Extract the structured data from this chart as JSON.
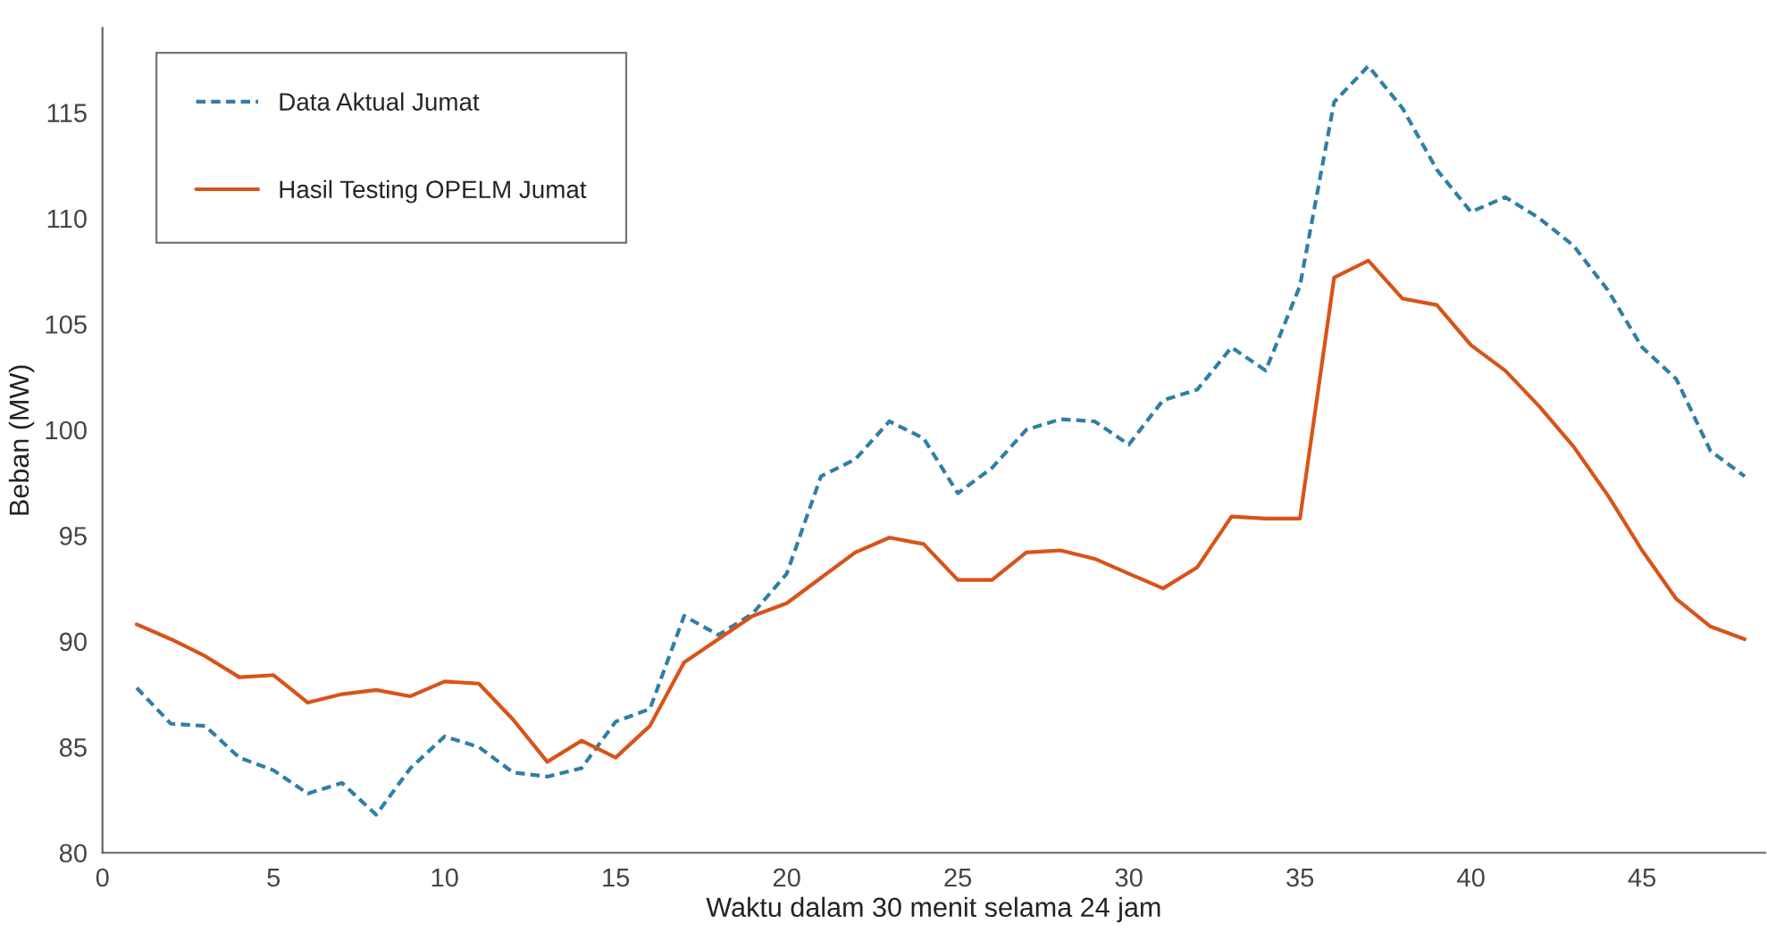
{
  "chart_data": {
    "type": "line",
    "xlabel": "Waktu dalam 30 menit selama 24 jam",
    "ylabel": "Beban (MW)",
    "x": [
      1,
      2,
      3,
      4,
      5,
      6,
      7,
      8,
      9,
      10,
      11,
      12,
      13,
      14,
      15,
      16,
      17,
      18,
      19,
      20,
      21,
      22,
      23,
      24,
      25,
      26,
      27,
      28,
      29,
      30,
      31,
      32,
      33,
      34,
      35,
      36,
      37,
      38,
      39,
      40,
      41,
      42,
      43,
      44,
      45,
      46,
      47,
      48
    ],
    "series": [
      {
        "name": "Data Aktual Jumat",
        "color": "#2f7fa6",
        "line_style": "dashed",
        "values": [
          87.8,
          86.1,
          86.0,
          84.5,
          83.9,
          82.8,
          83.3,
          81.8,
          84.0,
          85.5,
          85.0,
          83.8,
          83.6,
          84.0,
          86.2,
          86.8,
          91.2,
          90.3,
          91.3,
          93.2,
          97.8,
          98.6,
          100.4,
          99.6,
          97.0,
          98.2,
          100.0,
          100.5,
          100.4,
          99.3,
          101.4,
          101.9,
          103.9,
          102.8,
          106.8,
          115.5,
          117.2,
          115.2,
          112.3,
          110.3,
          111.0,
          110.0,
          108.7,
          106.6,
          103.9,
          102.4,
          99.0,
          97.8
        ]
      },
      {
        "name": "Hasil Testing OPELM Jumat",
        "color": "#d95319",
        "line_style": "solid",
        "values": [
          90.8,
          90.1,
          89.3,
          88.3,
          88.4,
          87.1,
          87.5,
          87.7,
          87.4,
          88.1,
          88.0,
          86.3,
          84.3,
          85.3,
          84.5,
          86.0,
          89.0,
          90.1,
          91.2,
          91.8,
          93.0,
          94.2,
          94.9,
          94.6,
          92.9,
          92.9,
          94.2,
          94.3,
          93.9,
          93.2,
          92.5,
          93.5,
          95.9,
          95.8,
          95.8,
          107.2,
          108.0,
          106.2,
          105.9,
          104.0,
          102.8,
          101.1,
          99.2,
          96.9,
          94.3,
          92.0,
          90.7,
          90.1
        ]
      }
    ],
    "xlim": [
      0,
      48.6
    ],
    "xticks": [
      0,
      5,
      10,
      15,
      20,
      25,
      30,
      35,
      40,
      45
    ],
    "ylim": [
      80,
      119
    ],
    "yticks": [
      80,
      85,
      90,
      95,
      100,
      105,
      110,
      115
    ],
    "grid": false,
    "legend": "top left",
    "marker": "none"
  }
}
